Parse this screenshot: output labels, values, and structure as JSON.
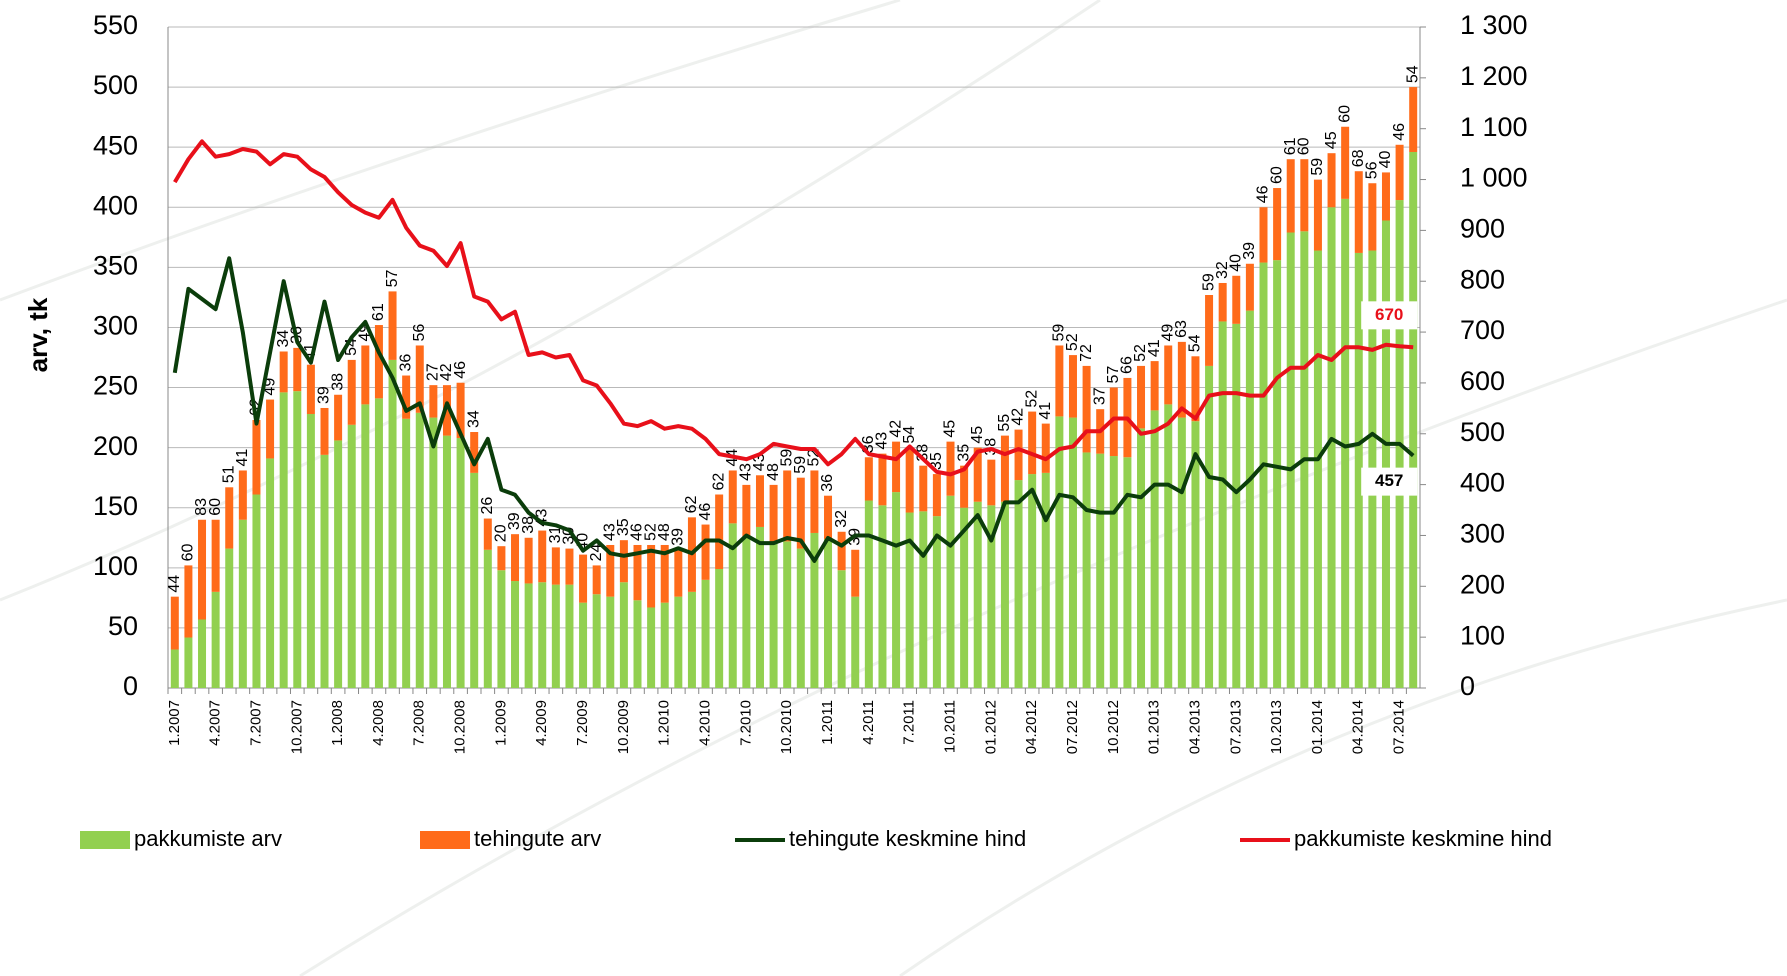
{
  "chart_data": {
    "type": "bar_line",
    "ylabel": "arv, tk",
    "categories": [
      "1.2007",
      null,
      null,
      "4.2007",
      null,
      null,
      "7.2007",
      null,
      null,
      "10.2007",
      null,
      null,
      "1.2008",
      null,
      null,
      "4.2008",
      null,
      null,
      "7.2008",
      null,
      null,
      "10.2008",
      null,
      null,
      "1.2009",
      null,
      null,
      "4.2009",
      null,
      null,
      "7.2009",
      null,
      null,
      "10.2009",
      null,
      null,
      "1.2010",
      null,
      null,
      "4.2010",
      null,
      null,
      "7.2010",
      null,
      null,
      "10.2010",
      null,
      null,
      "1.2011",
      null,
      null,
      "4.2011",
      null,
      null,
      "7.2011",
      null,
      null,
      "10.2011",
      null,
      null,
      "01.2012",
      null,
      null,
      "04.2012",
      null,
      null,
      "07.2012",
      null,
      null,
      "10.2012",
      null,
      null,
      "01.2013",
      null,
      null,
      "04.2013",
      null,
      null,
      "07.2013",
      null,
      null,
      "10.2013",
      null,
      null,
      "01.2014",
      null,
      null,
      "04.2014",
      null,
      null,
      "07.2014",
      null
    ],
    "series": [
      {
        "name": "pakkumiste arv",
        "type": "bar",
        "color": "#92d050",
        "values": [
          32,
          42,
          57,
          80,
          116,
          140,
          161,
          191,
          246,
          247,
          228,
          194,
          206,
          219,
          236,
          241,
          273,
          224,
          229,
          225,
          210,
          208,
          179,
          115,
          98,
          89,
          87,
          88,
          86,
          86,
          71,
          78,
          76,
          88,
          73,
          67,
          71,
          76,
          80,
          90,
          99,
          137,
          126,
          134,
          121,
          122,
          116,
          129,
          124,
          98,
          76,
          156,
          152,
          163,
          146,
          147,
          143,
          160,
          150,
          155,
          152,
          155,
          173,
          178,
          179,
          226,
          225,
          196,
          195,
          193,
          192,
          216,
          231,
          236,
          225,
          222,
          268,
          305,
          303,
          314,
          354,
          356,
          379,
          380,
          364,
          400,
          407,
          362,
          364,
          389,
          406,
          446
        ]
      },
      {
        "name": "tehingute arv",
        "type": "bar",
        "color": "#ff6b1a",
        "labels": true,
        "values": [
          44,
          60,
          83,
          60,
          51,
          41,
          62,
          49,
          34,
          36,
          41,
          39,
          38,
          54,
          49,
          61,
          57,
          36,
          56,
          27,
          42,
          46,
          34,
          26,
          20,
          39,
          38,
          43,
          31,
          30,
          40,
          24,
          43,
          35,
          46,
          52,
          48,
          39,
          62,
          46,
          62,
          44,
          43,
          43,
          48,
          59,
          59,
          52,
          36,
          32,
          39,
          36,
          43,
          42,
          54,
          38,
          35,
          45,
          35,
          45,
          38,
          55,
          42,
          52,
          41,
          59,
          52,
          72,
          37,
          57,
          66,
          52,
          41,
          49,
          63,
          54,
          59,
          32,
          40,
          39,
          46,
          60,
          61,
          60,
          59,
          45,
          60,
          68,
          56,
          40,
          46,
          54
        ]
      },
      {
        "name": "tehingute keskmine hind",
        "type": "line",
        "axis": "y2",
        "color": "#0b3d0b",
        "last_label": true,
        "values": [
          620,
          785,
          765,
          745,
          845,
          700,
          520,
          660,
          800,
          680,
          640,
          760,
          645,
          690,
          720,
          660,
          610,
          545,
          560,
          475,
          560,
          500,
          440,
          490,
          390,
          380,
          345,
          325,
          320,
          310,
          270,
          290,
          265,
          260,
          265,
          270,
          265,
          275,
          265,
          290,
          290,
          275,
          300,
          285,
          285,
          295,
          290,
          250,
          295,
          280,
          300,
          300,
          290,
          280,
          290,
          260,
          300,
          280,
          310,
          340,
          290,
          365,
          365,
          390,
          330,
          380,
          375,
          350,
          345,
          345,
          380,
          375,
          400,
          400,
          385,
          460,
          415,
          410,
          385,
          410,
          440,
          435,
          430,
          450,
          450,
          490,
          475,
          480,
          500,
          480,
          480,
          457
        ]
      },
      {
        "name": "pakkumiste keskmine hind",
        "type": "line",
        "axis": "y2",
        "color": "#e8101a",
        "last_label": true,
        "values": [
          995,
          1040,
          1075,
          1045,
          1050,
          1060,
          1055,
          1030,
          1050,
          1045,
          1020,
          1005,
          975,
          950,
          935,
          925,
          960,
          905,
          870,
          860,
          830,
          875,
          770,
          760,
          725,
          740,
          655,
          660,
          650,
          655,
          605,
          595,
          560,
          520,
          515,
          525,
          510,
          515,
          510,
          490,
          460,
          455,
          450,
          460,
          480,
          475,
          470,
          470,
          440,
          460,
          490,
          460,
          455,
          450,
          475,
          450,
          425,
          420,
          430,
          465,
          470,
          460,
          470,
          460,
          450,
          470,
          475,
          505,
          505,
          530,
          530,
          500,
          505,
          520,
          550,
          530,
          575,
          580,
          580,
          575,
          575,
          610,
          630,
          630,
          655,
          645,
          670,
          670,
          665,
          675,
          672,
          670
        ]
      }
    ],
    "ylim": [
      0,
      550
    ],
    "yticks": [
      0,
      50,
      100,
      150,
      200,
      250,
      300,
      350,
      400,
      450,
      500,
      550
    ],
    "y2lim": [
      0,
      1300
    ],
    "y2ticks": [
      0,
      100,
      200,
      300,
      400,
      500,
      600,
      700,
      800,
      900,
      {
        "value": 1000,
        "label": "1 000"
      },
      {
        "value": 1100,
        "label": "1 100"
      },
      {
        "value": 1200,
        "label": "1 200"
      },
      {
        "value": 1300,
        "label": "1 300"
      }
    ],
    "grid": true,
    "legend": "bottom"
  }
}
